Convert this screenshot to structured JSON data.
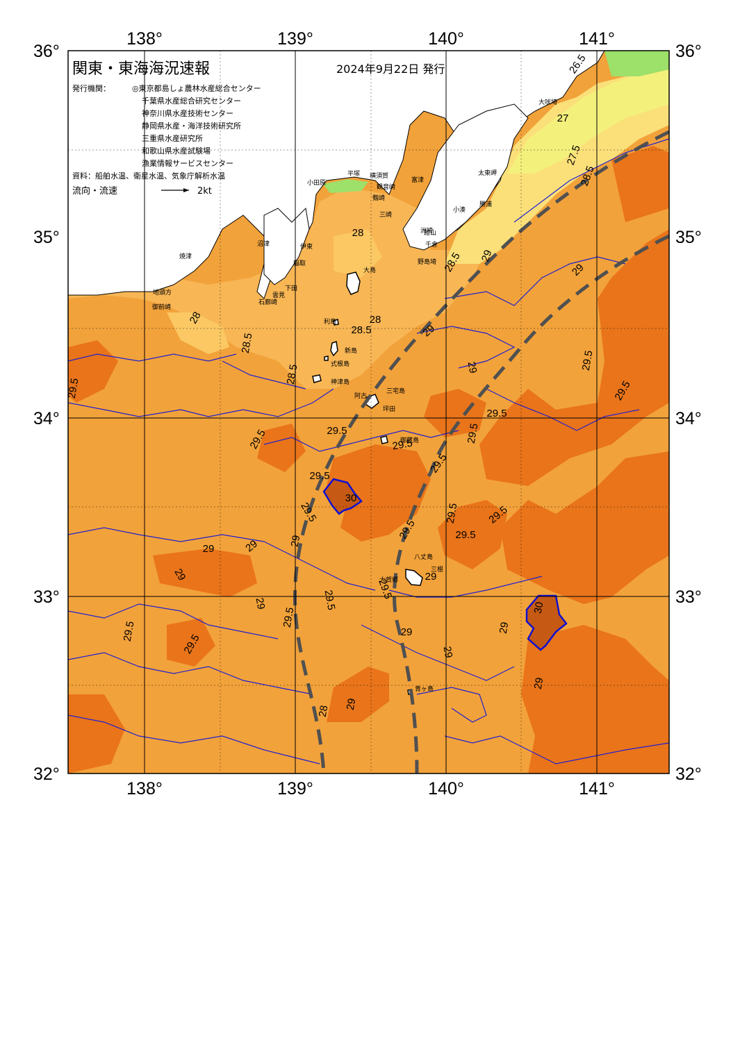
{
  "header": {
    "title": "関東・東海海況速報",
    "issued": "2024年9月22日 発行",
    "issuer_label": "発行機関：",
    "issuers": [
      "◎東京都島しょ農林水産総合センター",
      "千葉県水産総合研究センター",
      "神奈川県水産技術センター",
      "静岡県水産・海洋技術研究所",
      "三重県水産研究所",
      "和歌山県水産試験場",
      "漁業情報サービスセンター"
    ],
    "source": "資料：船舶水温、衛星水温、気象庁解析水温",
    "flow_legend": "流向・流速",
    "flow_scale": "2kt"
  },
  "axes": {
    "lon_labels": [
      "138°",
      "139°",
      "140°",
      "141°"
    ],
    "lat_labels": [
      "36°",
      "35°",
      "34°",
      "33°",
      "32°"
    ]
  },
  "colors": {
    "sea_29": "#f2a23a",
    "sea_29_5": "#e9741a",
    "sea_28_5": "#f8b655",
    "sea_28": "#fbc863",
    "sea_27": "#fbe07a",
    "sea_26": "#f4f07c",
    "sea_25": "#9de06a",
    "land": "#ffffff",
    "isotherm": "#2020d0",
    "kuroshio_axis": "#505050",
    "grid": "#000000"
  },
  "isotherm_labels": [
    "26.5",
    "27",
    "27.5",
    "28",
    "28.5",
    "28.5",
    "28",
    "28.5",
    "28.5",
    "29",
    "29",
    "28",
    "28.5",
    "29",
    "29",
    "29.5",
    "29.5",
    "29.5",
    "29.5",
    "29.5",
    "29.5",
    "29.5",
    "29.5",
    "29.5",
    "30",
    "29.5",
    "29.5",
    "29.5",
    "29.5",
    "29.5",
    "29.5",
    "30",
    "29",
    "29",
    "29",
    "29",
    "29",
    "29",
    "29.5",
    "29.5",
    "29.5",
    "29.5",
    "29.5",
    "29",
    "29",
    "29",
    "28",
    "29",
    "29"
  ],
  "place_names": [
    "大吠埼",
    "太東岬",
    "勝浦",
    "小湊",
    "洲埼",
    "館山",
    "千倉",
    "野島埼",
    "富津",
    "観音崎",
    "剱崎",
    "三崎",
    "横須賀",
    "平塚",
    "小田原",
    "大島",
    "伊東",
    "稲取",
    "下田",
    "石廊崎",
    "雲見",
    "沼津",
    "焼津",
    "御前崎",
    "地頭方",
    "利島",
    "新島",
    "式根島",
    "神津島",
    "三宅島",
    "阿古",
    "坪田",
    "御蔵島",
    "八丈島",
    "大賀郷",
    "三根",
    "青ヶ島"
  ]
}
